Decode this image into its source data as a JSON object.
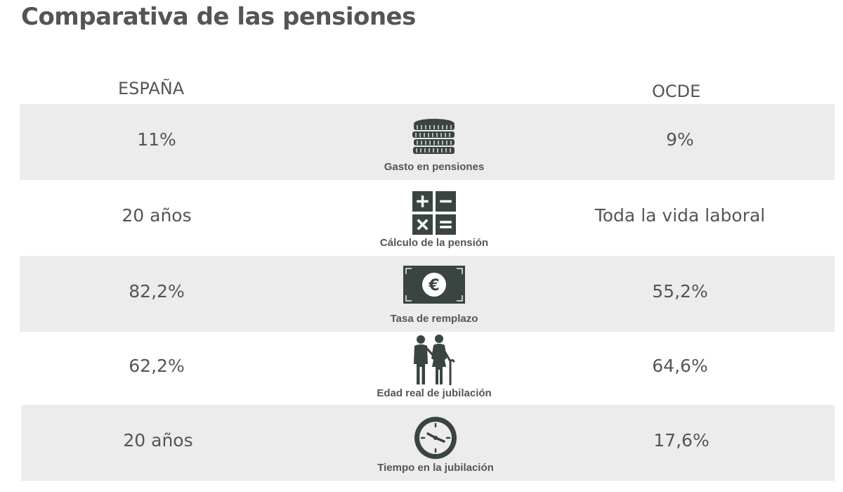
{
  "title": "Comparativa de las pensiones",
  "columns": {
    "left": "ESPAÑA",
    "right": "OCDE"
  },
  "rows": [
    {
      "left": "11%",
      "label": "Gasto en pensiones",
      "right": "9%",
      "icon": "coins-stack-icon"
    },
    {
      "left": "20 años",
      "label": "Cálculo de la pensión",
      "right": "Toda la vida laboral",
      "icon": "calculator-icon"
    },
    {
      "left": "82,2%",
      "label": "Tasa de remplazo",
      "right": "55,2%",
      "icon": "euro-banknote-icon"
    },
    {
      "left": "62,2%",
      "label": "Edad real de jubilación",
      "right": "64,6%",
      "icon": "elderly-couple-icon"
    },
    {
      "left": "20 años",
      "label": "Tiempo en la jubilación",
      "right": "17,6%",
      "icon": "clock-icon"
    }
  ],
  "colors": {
    "text": "#555555",
    "icon": "#3a4441",
    "row_shade": "#ececec"
  }
}
